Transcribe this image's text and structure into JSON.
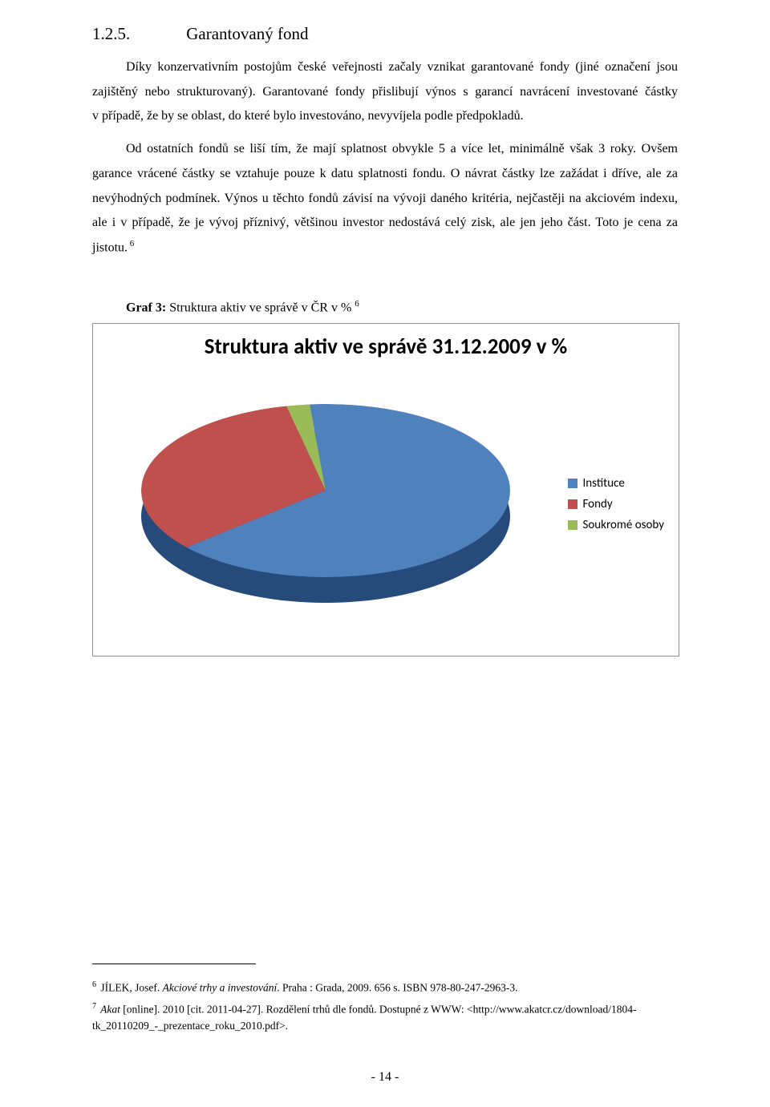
{
  "heading": {
    "number": "1.2.5.",
    "title": "Garantovaný fond"
  },
  "paragraphs": {
    "p1a": "Díky konzervativním postojům české veřejnosti začaly vznikat garantované fondy (jiné označení jsou zajištěný nebo strukturovaný). Garantované fondy přislibují výnos s garancí navrácení investované částky v případě, že by se oblast, do které bylo investováno, nevyvíjela podle předpokladů.",
    "p1b": "Od ostatních fondů se liší tím, že mají splatnost obvykle 5 a více let, minimálně však 3 roky. Ovšem garance vrácené částky se vztahuje pouze k datu splatnosti fondu. O návrat částky lze zažádat i dříve, ale za nevýhodných podmínek. Výnos u těchto fondů závisí na vývoji daného kritéria, nejčastěji na akciovém indexu, ale i v případě, že je vývoj příznivý, většinou investor nedostává celý zisk, ale jen jeho část. Toto je cena za jistotu.",
    "p1b_sup": " 6"
  },
  "graf": {
    "label_bold": "Graf 3:",
    "label_rest": " Struktura aktiv ve správě v ČR v % ",
    "label_sup": "6"
  },
  "chart": {
    "type": "pie-3d",
    "title": "Struktura aktiv ve správě 31.12.2009 v %",
    "background_color": "#ffffff",
    "border_color": "#909090",
    "slices": [
      {
        "label": "Instituce",
        "value": 65,
        "color": "#4f81bd"
      },
      {
        "label": "Fondy",
        "value": 33,
        "color": "#c0504d"
      },
      {
        "label": "Soukromé osoby",
        "value": 2,
        "color": "#9bbb59"
      }
    ],
    "base_shadow_color": "#264b7a",
    "title_fontsize": 27,
    "legend_fontsize": 15
  },
  "footnotes": {
    "f6_num": "6",
    "f6_text_a": " JÍLEK, Josef. ",
    "f6_text_ital": "Akciové trhy a investování",
    "f6_text_b": ". Praha : Grada, 2009. 656 s. ISBN 978-80-247-2963-3.",
    "f7_num": "7",
    "f7_text_ital": " Akat ",
    "f7_text_rest": "[online]. 2010 [cit. 2011-04-27]. Rozdělení trhů dle fondů. Dostupné z WWW: <http://www.akatcr.cz/download/1804-tk_20110209_-_prezentace_roku_2010.pdf>."
  },
  "page_number": "- 14 -"
}
